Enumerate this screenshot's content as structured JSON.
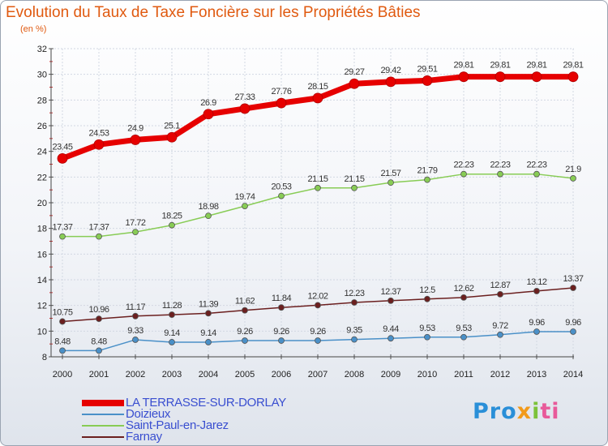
{
  "chart_data": {
    "type": "line",
    "title": "Evolution du Taux de Taxe Foncière sur les Propriétés Bâties",
    "unit_label": "(en %)",
    "xlabel": "",
    "ylabel": "",
    "ylim": [
      8,
      32
    ],
    "y_ticks": [
      "8",
      "10",
      "12",
      "14",
      "16",
      "18",
      "20",
      "22",
      "24",
      "26",
      "28",
      "30",
      "32"
    ],
    "x": [
      "2000",
      "2001",
      "2002",
      "2003",
      "2004",
      "2005",
      "2006",
      "2007",
      "2008",
      "2009",
      "2010",
      "2011",
      "2012",
      "2013",
      "2014"
    ],
    "grid": true,
    "legend_position": "bottom-left",
    "series": [
      {
        "name": "LA TERRASSE-SUR-DORLAY",
        "color": "#e60000",
        "values": [
          23.45,
          24.53,
          24.9,
          25.1,
          26.9,
          27.33,
          27.76,
          28.15,
          29.27,
          29.42,
          29.51,
          29.81,
          29.81,
          29.81,
          29.81
        ],
        "labels": [
          "23.45",
          "24.53",
          "24.9",
          "25.1",
          "26.9",
          "27.33",
          "27.76",
          "28.15",
          "29.27",
          "29.42",
          "29.51",
          "29.81",
          "29.81",
          "29.81",
          "29.81"
        ]
      },
      {
        "name": "Doizieux",
        "color": "#4a90c8",
        "values": [
          8.48,
          8.48,
          9.33,
          9.14,
          9.14,
          9.26,
          9.26,
          9.26,
          9.35,
          9.44,
          9.53,
          9.53,
          9.72,
          9.96,
          9.96
        ],
        "labels": [
          "8.48",
          "8.48",
          "9.33",
          "9.14",
          "9.14",
          "9.26",
          "9.26",
          "9.26",
          "9.35",
          "9.44",
          "9.53",
          "9.53",
          "9.72",
          "9.96",
          "9.96"
        ]
      },
      {
        "name": "Saint-Paul-en-Jarez",
        "color": "#88cc55",
        "values": [
          17.37,
          17.37,
          17.72,
          18.25,
          18.98,
          19.74,
          20.53,
          21.15,
          21.15,
          21.57,
          21.79,
          22.23,
          22.23,
          22.23,
          21.9
        ],
        "labels": [
          "17.37",
          "17.37",
          "17.72",
          "18.25",
          "18.98",
          "19.74",
          "20.53",
          "21.15",
          "21.15",
          "21.57",
          "21.79",
          "22.23",
          "22.23",
          "22.23",
          "21.9"
        ]
      },
      {
        "name": "Farnay",
        "color": "#6b1f1f",
        "values": [
          10.75,
          10.96,
          11.17,
          11.28,
          11.39,
          11.62,
          11.84,
          12.02,
          12.23,
          12.37,
          12.5,
          12.62,
          12.87,
          13.12,
          13.37
        ],
        "labels": [
          "10.75",
          "10.96",
          "11.17",
          "11.28",
          "11.39",
          "11.62",
          "11.84",
          "12.02",
          "12.23",
          "12.37",
          "12.5",
          "12.62",
          "12.87",
          "13.12",
          "13.37"
        ]
      }
    ]
  },
  "logo": {
    "text": "Proxiti",
    "p1": "Pro",
    "p2": "x",
    "p3": "i",
    "p4": "ti"
  }
}
